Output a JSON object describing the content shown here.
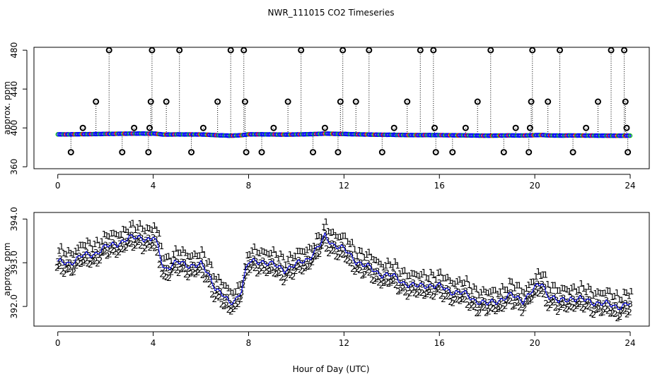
{
  "chart_data": [
    {
      "type": "scatter",
      "title": "NWR_111015  CO2 Timeseries",
      "xlabel": "Hour of Day (UTC)",
      "ylabel": "approx. ppm",
      "xlim": [
        -1,
        24.8
      ],
      "ylim": [
        358,
        483
      ],
      "xticks": [
        0,
        4,
        8,
        12,
        16,
        20,
        24
      ],
      "xtick_labels": [
        "0",
        "4",
        "8",
        "12",
        "16",
        "20",
        "24"
      ],
      "yticks": [
        360,
        400,
        440,
        480
      ],
      "ytick_labels": [
        "360",
        "400",
        "440",
        "480"
      ],
      "grid": false,
      "series": [
        {
          "name": "flagged values",
          "color": "#000000",
          "points": [
            [
              0.55,
              375
            ],
            [
              1.05,
              400
            ],
            [
              1.6,
              427
            ],
            [
              2.15,
              480
            ],
            [
              2.7,
              375
            ],
            [
              3.2,
              400
            ],
            [
              3.8,
              375
            ],
            [
              3.85,
              400
            ],
            [
              3.9,
              427
            ],
            [
              3.95,
              480
            ],
            [
              4.55,
              427
            ],
            [
              5.1,
              480
            ],
            [
              5.6,
              375
            ],
            [
              6.1,
              400
            ],
            [
              6.7,
              427
            ],
            [
              7.25,
              480
            ],
            [
              7.8,
              480
            ],
            [
              7.85,
              427
            ],
            [
              7.9,
              375
            ],
            [
              8.55,
              375
            ],
            [
              9.05,
              400
            ],
            [
              9.65,
              427
            ],
            [
              10.2,
              480
            ],
            [
              10.7,
              375
            ],
            [
              11.2,
              400
            ],
            [
              11.75,
              375
            ],
            [
              11.85,
              427
            ],
            [
              11.95,
              480
            ],
            [
              12.5,
              427
            ],
            [
              13.05,
              480
            ],
            [
              13.6,
              375
            ],
            [
              14.1,
              400
            ],
            [
              14.65,
              427
            ],
            [
              15.2,
              480
            ],
            [
              15.75,
              480
            ],
            [
              15.8,
              400
            ],
            [
              15.85,
              375
            ],
            [
              16.55,
              375
            ],
            [
              17.1,
              400
            ],
            [
              17.6,
              427
            ],
            [
              18.15,
              480
            ],
            [
              18.7,
              375
            ],
            [
              19.2,
              400
            ],
            [
              19.75,
              375
            ],
            [
              19.8,
              400
            ],
            [
              19.85,
              427
            ],
            [
              19.9,
              480
            ],
            [
              20.55,
              427
            ],
            [
              21.05,
              480
            ],
            [
              21.6,
              375
            ],
            [
              22.15,
              400
            ],
            [
              22.65,
              427
            ],
            [
              23.2,
              480
            ],
            [
              23.75,
              480
            ],
            [
              23.8,
              427
            ],
            [
              23.85,
              400
            ],
            [
              23.9,
              375
            ]
          ]
        },
        {
          "name": "co2 trace",
          "color": "#0000ff",
          "values_ref": "lower panel co2 trace"
        }
      ]
    },
    {
      "type": "scatter",
      "title": "",
      "xlabel": "Hour of Day (UTC)",
      "ylabel": "approx. ppm",
      "xlim": [
        -1,
        24.8
      ],
      "ylim": [
        391.55,
        394.15
      ],
      "xticks": [
        0,
        4,
        8,
        12,
        16,
        20,
        24
      ],
      "xtick_labels": [
        "0",
        "4",
        "8",
        "12",
        "16",
        "20",
        "24"
      ],
      "yticks": [
        392.0,
        393.0,
        394.0
      ],
      "ytick_labels": [
        "392.0",
        "393.0",
        "394.0"
      ],
      "grid": false,
      "series": [
        {
          "name": "co2 trace (3)",
          "marker": "3",
          "color": "#0000ff",
          "offset": 0
        },
        {
          "name": "level 1",
          "marker": "1",
          "color": "#ff0000",
          "offset": 0.17
        },
        {
          "name": "level 2",
          "marker": "2",
          "color": "#00cc00",
          "offset": -0.12
        }
      ],
      "co2_trace": {
        "x": [
          0,
          0.5,
          1,
          1.5,
          2,
          2.5,
          3,
          3.5,
          3.9,
          4,
          4.2,
          4.45,
          4.6,
          5,
          5.5,
          6,
          6.3,
          6.6,
          7,
          7.2,
          7.5,
          7.7,
          7.95,
          8,
          8.5,
          9,
          9.5,
          10,
          10.5,
          11,
          11.2,
          11.5,
          12,
          12.5,
          13,
          13.5,
          14,
          14.5,
          15,
          15.5,
          16,
          16.5,
          17,
          17.5,
          18,
          18.5,
          19,
          19.5,
          20,
          20.3,
          20.5,
          21,
          21.5,
          22,
          22.5,
          23,
          23.5,
          23.9
        ],
        "y": [
          393.0,
          393.0,
          393.15,
          393.2,
          393.35,
          393.45,
          393.55,
          393.6,
          393.5,
          393.6,
          393.35,
          392.85,
          392.9,
          393.0,
          392.95,
          392.95,
          392.75,
          392.45,
          392.2,
          392.05,
          392.2,
          392.4,
          392.95,
          393.0,
          393.05,
          392.95,
          392.85,
          392.95,
          393.1,
          393.4,
          393.6,
          393.45,
          393.3,
          393.05,
          392.9,
          392.75,
          392.7,
          392.55,
          392.45,
          392.5,
          392.45,
          392.35,
          392.3,
          392.15,
          392.05,
          392.15,
          392.25,
          392.15,
          392.4,
          392.55,
          392.3,
          392.1,
          392.2,
          392.15,
          392.1,
          392.05,
          392.0,
          392.05
        ]
      }
    }
  ]
}
